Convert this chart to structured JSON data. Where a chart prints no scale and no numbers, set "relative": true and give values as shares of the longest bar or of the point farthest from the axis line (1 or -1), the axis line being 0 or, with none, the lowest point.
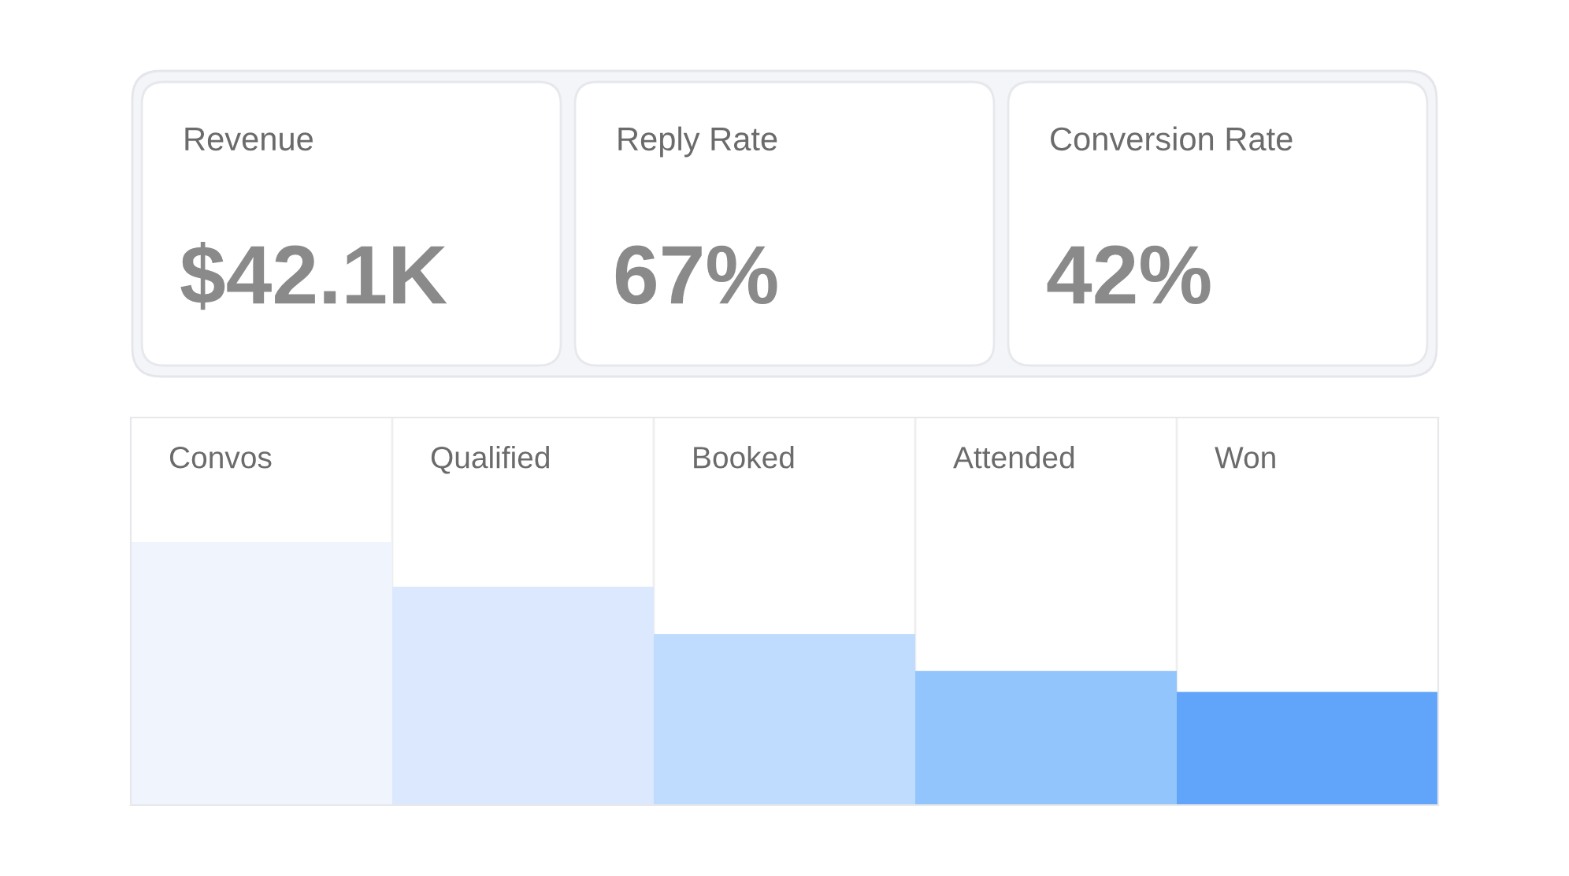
{
  "chart_data": [
    {
      "type": "other",
      "categories": [
        "Revenue",
        "Reply Rate",
        "Conversion Rate"
      ],
      "value_labels": [
        "$42.1K",
        "67%",
        "42%"
      ]
    },
    {
      "type": "bar",
      "relative": true,
      "categories": [
        "Convos",
        "Qualified",
        "Booked",
        "Attended",
        "Won"
      ],
      "values": [
        1.0,
        0.83,
        0.65,
        0.51,
        0.43
      ],
      "colors": [
        "#eff4fd",
        "#dbe8fe",
        "#bfdbfe",
        "#93c5fd",
        "#60a5fa"
      ],
      "grid": "x"
    }
  ]
}
